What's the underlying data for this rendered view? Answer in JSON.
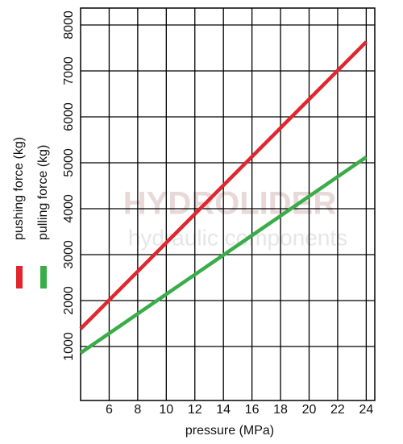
{
  "chart_data": {
    "type": "line",
    "x_label": "pressure (MPa)",
    "watermark": [
      "HYDROLIDER",
      "hydraulic components"
    ],
    "x": [
      4,
      24
    ],
    "series": [
      {
        "name": "pushing force (kg)",
        "color": "#e0262e",
        "values": [
          1386,
          7632
        ]
      },
      {
        "name": "pulling force (kg)",
        "color": "#3aad48",
        "values": [
          860,
          5123
        ]
      }
    ],
    "xlim": [
      4,
      24.6
    ],
    "xticks": [
      6,
      8,
      10,
      12,
      14,
      16,
      18,
      20,
      22,
      24
    ],
    "ylim": [
      -175,
      8368
    ],
    "yticks": [
      1000,
      2000,
      3000,
      4000,
      5000,
      6000,
      7000,
      8000
    ],
    "grid": true,
    "legend": "left"
  }
}
